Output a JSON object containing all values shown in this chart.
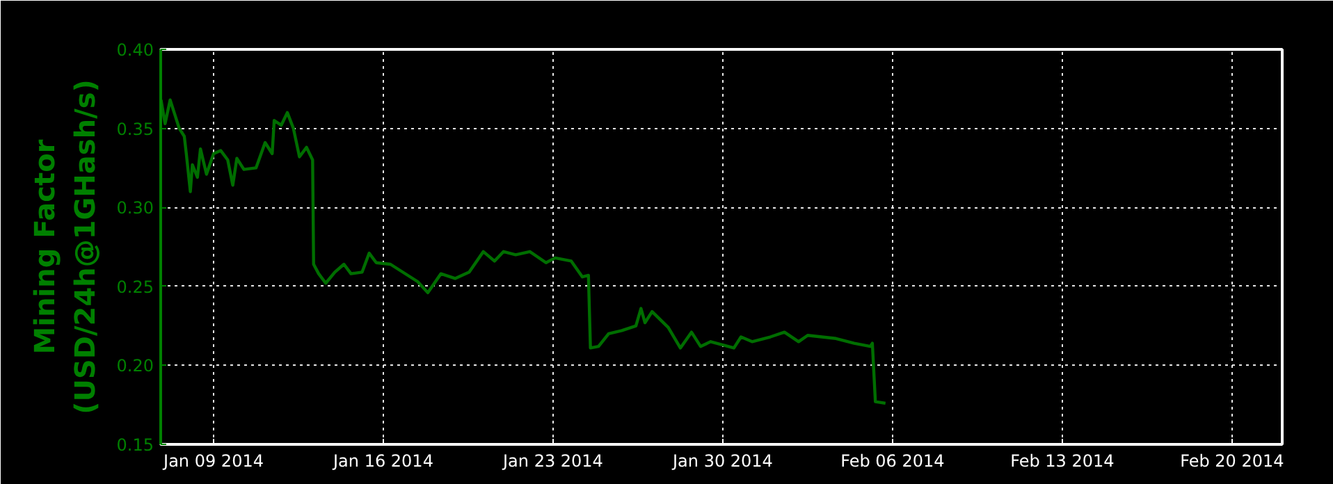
{
  "chart_data": {
    "type": "line",
    "ylabel": "Mining Factor\n(USD/24h@1GHash/s)",
    "x": [
      "2014-01-06T20:00",
      "2014-01-07T00:00",
      "2014-01-07T05:00",
      "2014-01-07T09:00",
      "2014-01-07T14:00",
      "2014-01-07T19:00",
      "2014-01-07T21:00",
      "2014-01-08T01:00",
      "2014-01-08T03:00",
      "2014-01-08T08:00",
      "2014-01-08T11:00",
      "2014-01-08T17:00",
      "2014-01-09T00:00",
      "2014-01-09T07:00",
      "2014-01-09T14:00",
      "2014-01-09T19:00",
      "2014-01-09T23:00",
      "2014-01-10T06:00",
      "2014-01-10T18:00",
      "2014-01-11T03:00",
      "2014-01-11T10:00",
      "2014-01-11T12:00",
      "2014-01-11T19:00",
      "2014-01-12T01:00",
      "2014-01-12T07:00",
      "2014-01-12T13:00",
      "2014-01-12T20:00",
      "2014-01-13T02:00",
      "2014-01-13T03:00",
      "2014-01-13T08:00",
      "2014-01-13T15:00",
      "2014-01-14T00:00",
      "2014-01-14T09:00",
      "2014-01-14T16:00",
      "2014-01-15T03:00",
      "2014-01-15T10:00",
      "2014-01-15T17:00",
      "2014-01-16T07:00",
      "2014-01-17T10:00",
      "2014-01-17T20:00",
      "2014-01-18T09:00",
      "2014-01-18T23:00",
      "2014-01-19T13:00",
      "2014-01-20T03:00",
      "2014-01-20T14:00",
      "2014-01-20T23:00",
      "2014-01-21T11:00",
      "2014-01-22T01:00",
      "2014-01-22T17:00",
      "2014-01-23T02:00",
      "2014-01-23T18:00",
      "2014-01-24T05:00",
      "2014-01-24T11:00",
      "2014-01-24T13:00",
      "2014-01-24T21:00",
      "2014-01-25T07:00",
      "2014-01-25T20:00",
      "2014-01-26T10:00",
      "2014-01-26T15:00",
      "2014-01-26T19:00",
      "2014-01-27T02:00",
      "2014-01-27T18:00",
      "2014-01-28T06:00",
      "2014-01-28T17:00",
      "2014-01-29T02:00",
      "2014-01-29T12:00",
      "2014-01-30T11:00",
      "2014-01-30T18:00",
      "2014-01-31T05:00",
      "2014-01-31T23:00",
      "2014-02-01T13:00",
      "2014-02-02T03:00",
      "2014-02-02T12:00",
      "2014-02-03T16:00",
      "2014-02-04T10:00",
      "2014-02-05T02:00",
      "2014-02-05T04:00",
      "2014-02-05T07:00",
      "2014-02-05T17:00"
    ],
    "series": [
      {
        "color": "#006e00",
        "values": [
          0.368,
          0.353,
          0.368,
          0.36,
          0.35,
          0.345,
          0.334,
          0.31,
          0.327,
          0.319,
          0.337,
          0.321,
          0.334,
          0.336,
          0.33,
          0.314,
          0.331,
          0.324,
          0.325,
          0.341,
          0.334,
          0.355,
          0.352,
          0.36,
          0.35,
          0.332,
          0.338,
          0.33,
          0.264,
          0.258,
          0.252,
          0.259,
          0.264,
          0.258,
          0.259,
          0.271,
          0.265,
          0.264,
          0.253,
          0.246,
          0.258,
          0.255,
          0.259,
          0.272,
          0.266,
          0.272,
          0.27,
          0.272,
          0.265,
          0.268,
          0.266,
          0.256,
          0.257,
          0.211,
          0.212,
          0.22,
          0.222,
          0.225,
          0.236,
          0.227,
          0.234,
          0.224,
          0.211,
          0.221,
          0.212,
          0.215,
          0.211,
          0.218,
          0.215,
          0.218,
          0.221,
          0.215,
          0.219,
          0.217,
          0.214,
          0.212,
          0.214,
          0.177,
          0.176
        ]
      }
    ],
    "xlim": [
      "2014-01-06T19:40",
      "2014-02-22T01:40"
    ],
    "xticks": [
      {
        "value": "2014-01-09",
        "label": "Jan 09 2014"
      },
      {
        "value": "2014-01-16",
        "label": "Jan 16 2014"
      },
      {
        "value": "2014-01-23",
        "label": "Jan 23 2014"
      },
      {
        "value": "2014-01-30",
        "label": "Jan 30 2014"
      },
      {
        "value": "2014-02-06",
        "label": "Feb 06 2014"
      },
      {
        "value": "2014-02-13",
        "label": "Feb 13 2014"
      },
      {
        "value": "2014-02-20",
        "label": "Feb 20 2014"
      }
    ],
    "ylim": [
      0.15,
      0.4
    ],
    "yticks": [
      {
        "value": 0.15,
        "label": "0.15"
      },
      {
        "value": 0.2,
        "label": "0.20"
      },
      {
        "value": 0.25,
        "label": "0.25"
      },
      {
        "value": 0.3,
        "label": "0.30"
      },
      {
        "value": 0.35,
        "label": "0.35"
      },
      {
        "value": 0.4,
        "label": "0.40"
      }
    ],
    "grid": true,
    "line_style": "solid"
  }
}
